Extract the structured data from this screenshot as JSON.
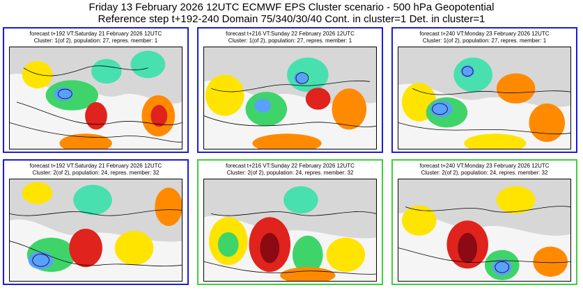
{
  "header": {
    "line1": "Friday 13 February 2026 12UTC ECMWF EPS Cluster scenario - 500 hPa Geopotential",
    "line2": "Reference step t+192-240 Domain 75/340/30/40 Cont. in cluster=1 Det. in cluster=1"
  },
  "colors": {
    "cluster1_border": "#1a1adc",
    "cluster2_border": "#3ecf3e"
  },
  "panels": [
    {
      "line1": "forecast t+192 VT:Saturday 21 February 2026 12UTC",
      "line2": "Cluster: 1(of 2), population: 27, repres. member: 1",
      "highlight": "blue"
    },
    {
      "line1": "forecast t+216 VT:Sunday 22 February 2026 12UTC",
      "line2": "Cluster: 1(of 2), population: 27, repres. member: 1",
      "highlight": "blue"
    },
    {
      "line1": "forecast t+240 VT:Monday 23 February 2026 12UTC",
      "line2": "Cluster: 1(of 2), population: 27, repres. member: 1",
      "highlight": "blue"
    },
    {
      "line1": "forecast t+192 VT:Saturday 21 February 2026 12UTC",
      "line2": "Cluster: 2(of 2), population: 24, repres. member: 32",
      "highlight": "blue"
    },
    {
      "line1": "forecast t+216 VT:Sunday 22 February 2026 12UTC",
      "line2": "Cluster: 2(of 2), population: 24, repres. member: 32",
      "highlight": "green"
    },
    {
      "line1": "forecast t+240 VT:Monday 23 February 2026 12UTC",
      "line2": "Cluster: 2(of 2), population: 24, repres. member: 32",
      "highlight": "green"
    }
  ]
}
